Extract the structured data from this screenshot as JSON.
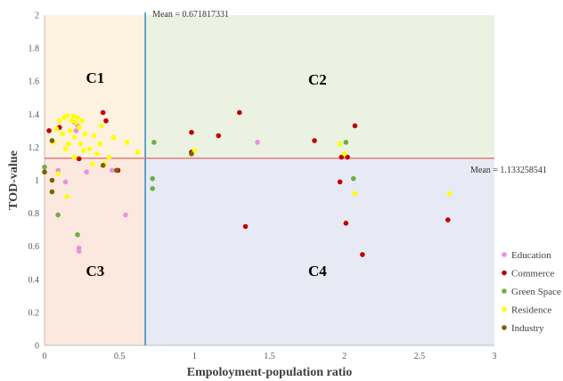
{
  "chart_data": {
    "type": "scatter",
    "xlabel": "Empoloyment-population  ratio",
    "ylabel": "TOD-value",
    "xlim": [
      0,
      3
    ],
    "ylim": [
      0,
      2
    ],
    "x_ticks": [
      "0",
      "0.5",
      "1",
      "1.5",
      "2",
      "2.5",
      "3"
    ],
    "y_ticks": [
      "0",
      "0.2",
      "0.4",
      "0.6",
      "0.8",
      "1",
      "1.2",
      "1.4",
      "1.6",
      "1.8",
      "2"
    ],
    "grid": false,
    "legend_position": "right",
    "mean_x": {
      "value": 0.671817331,
      "label": "Mean = 0.671817331"
    },
    "mean_y": {
      "value": 1.133258541,
      "label": "Mean = 1.133258541"
    },
    "quadrants": [
      {
        "label": "C1",
        "color": "#fdf1e0"
      },
      {
        "label": "C2",
        "color": "#ebf2e1"
      },
      {
        "label": "C3",
        "color": "#fbe8df"
      },
      {
        "label": "C4",
        "color": "#e7eaf4"
      }
    ],
    "series": [
      {
        "name": "Education",
        "color": "#e990e0",
        "points": [
          [
            0.09,
            1.06
          ],
          [
            0.14,
            0.99
          ],
          [
            0.2,
            1.35
          ],
          [
            0.21,
            1.3
          ],
          [
            0.22,
            1.33
          ],
          [
            0.23,
            0.59
          ],
          [
            0.23,
            0.57
          ],
          [
            0.28,
            1.05
          ],
          [
            0.45,
            1.06
          ],
          [
            0.54,
            0.79
          ],
          [
            1.42,
            1.23
          ]
        ]
      },
      {
        "name": "Commerce",
        "color": "#c00000",
        "points": [
          [
            0.03,
            1.3
          ],
          [
            0.1,
            1.32
          ],
          [
            0.23,
            1.13
          ],
          [
            0.39,
            1.41
          ],
          [
            0.41,
            1.36
          ],
          [
            0.49,
            1.06
          ],
          [
            0.98,
            1.29
          ],
          [
            0.98,
            1.17
          ],
          [
            1.16,
            1.27
          ],
          [
            1.3,
            1.41
          ],
          [
            1.34,
            0.72
          ],
          [
            1.8,
            1.24
          ],
          [
            1.97,
            0.99
          ],
          [
            1.98,
            1.14
          ],
          [
            2.01,
            0.74
          ],
          [
            2.07,
            1.33
          ],
          [
            2.12,
            0.55
          ],
          [
            2.69,
            0.76
          ],
          [
            2.02,
            1.14
          ]
        ]
      },
      {
        "name": "Green Space",
        "color": "#70ad47",
        "points": [
          [
            0,
            1.08
          ],
          [
            0.09,
            0.79
          ],
          [
            0.22,
            0.67
          ],
          [
            0.73,
            1.23
          ],
          [
            0.72,
            1.01
          ],
          [
            0.72,
            0.95
          ],
          [
            2.01,
            1.23
          ],
          [
            2.06,
            1.01
          ]
        ]
      },
      {
        "name": "Residence",
        "color": "#ffff00",
        "points": [
          [
            0.06,
            1.23
          ],
          [
            0.08,
            1.31
          ],
          [
            0.1,
            1.36
          ],
          [
            0.12,
            1.28
          ],
          [
            0.13,
            1.38
          ],
          [
            0.15,
            1.39
          ],
          [
            0.16,
            1.22
          ],
          [
            0.17,
            1.3
          ],
          [
            0.18,
            1.36
          ],
          [
            0.19,
            1.39
          ],
          [
            0.2,
            1.26
          ],
          [
            0.21,
            1.35
          ],
          [
            0.22,
            1.38
          ],
          [
            0.23,
            1.32
          ],
          [
            0.24,
            1.22
          ],
          [
            0.25,
            1.36
          ],
          [
            0.26,
            1.18
          ],
          [
            0.27,
            1.28
          ],
          [
            0.3,
            1.19
          ],
          [
            0.32,
            1.1
          ],
          [
            0.33,
            1.27
          ],
          [
            0.35,
            1.16
          ],
          [
            0.37,
            1.22
          ],
          [
            0.38,
            1.33
          ],
          [
            0.4,
            1.1
          ],
          [
            0.43,
            1.14
          ],
          [
            0.46,
            1.26
          ],
          [
            0.55,
            1.23
          ],
          [
            0.62,
            1.17
          ],
          [
            0.15,
            0.9
          ],
          [
            0.14,
            1.19
          ],
          [
            0.09,
            1.04
          ],
          [
            0.2,
            1.14
          ],
          [
            1.0,
            1.18
          ],
          [
            1.97,
            1.22
          ],
          [
            2.0,
            1.16
          ],
          [
            2.07,
            0.92
          ],
          [
            2.7,
            0.92
          ]
        ]
      },
      {
        "name": "Industry",
        "color": "#7f6000",
        "points": [
          [
            0.0,
            1.05
          ],
          [
            0.05,
            1.24
          ],
          [
            0.05,
            0.93
          ],
          [
            0.05,
            1.0
          ],
          [
            0.39,
            1.09
          ],
          [
            0.48,
            1.06
          ],
          [
            0.98,
            1.16
          ]
        ]
      }
    ]
  }
}
